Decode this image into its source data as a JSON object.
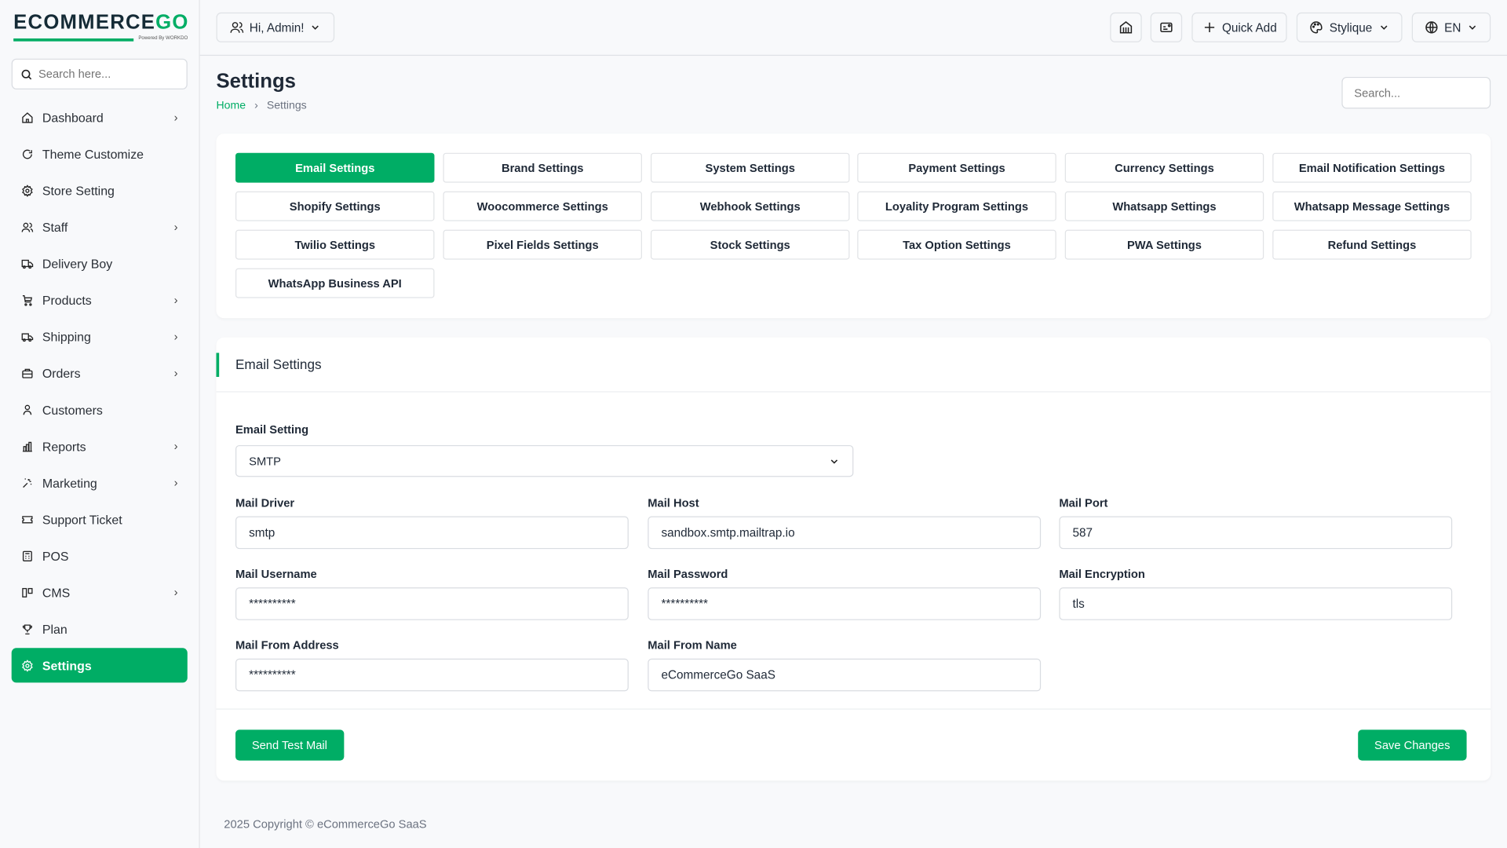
{
  "brand": {
    "logo_main": "ECOMMERCE",
    "logo_accent": "GO",
    "powered": "Powered By WORKDO",
    "accent": "#00ad65"
  },
  "sidebar": {
    "search_placeholder": "Search here...",
    "items": [
      {
        "label": "Dashboard",
        "icon": "home-icon",
        "chevron": true
      },
      {
        "label": "Theme Customize",
        "icon": "refresh-icon",
        "chevron": false
      },
      {
        "label": "Store Setting",
        "icon": "gear-icon",
        "chevron": false
      },
      {
        "label": "Staff",
        "icon": "users-icon",
        "chevron": true
      },
      {
        "label": "Delivery Boy",
        "icon": "truck-icon",
        "chevron": false
      },
      {
        "label": "Products",
        "icon": "cart-icon",
        "chevron": true
      },
      {
        "label": "Shipping",
        "icon": "shipping-icon",
        "chevron": true
      },
      {
        "label": "Orders",
        "icon": "briefcase-icon",
        "chevron": true
      },
      {
        "label": "Customers",
        "icon": "user-icon",
        "chevron": false
      },
      {
        "label": "Reports",
        "icon": "chart-icon",
        "chevron": true
      },
      {
        "label": "Marketing",
        "icon": "sparkle-icon",
        "chevron": true
      },
      {
        "label": "Support Ticket",
        "icon": "ticket-icon",
        "chevron": false
      },
      {
        "label": "POS",
        "icon": "pos-icon",
        "chevron": false
      },
      {
        "label": "CMS",
        "icon": "layout-icon",
        "chevron": true
      },
      {
        "label": "Plan",
        "icon": "trophy-icon",
        "chevron": false
      },
      {
        "label": "Settings",
        "icon": "gear-icon",
        "chevron": false,
        "active": true
      }
    ]
  },
  "header": {
    "greeting": "Hi, Admin!",
    "quick_add": "Quick Add",
    "theme": "Stylique",
    "language": "EN"
  },
  "page": {
    "title": "Settings",
    "breadcrumb": [
      "Home",
      "Settings"
    ],
    "search_placeholder": "Search..."
  },
  "tabs": [
    "Email Settings",
    "Brand Settings",
    "System Settings",
    "Payment Settings",
    "Currency Settings",
    "Email Notification Settings",
    "Shopify Settings",
    "Woocommerce Settings",
    "Webhook Settings",
    "Loyality Program Settings",
    "Whatsapp Settings",
    "Whatsapp Message Settings",
    "Twilio Settings",
    "Pixel Fields Settings",
    "Stock Settings",
    "Tax Option Settings",
    "PWA Settings",
    "Refund Settings",
    "WhatsApp Business API"
  ],
  "active_tab": "Email Settings",
  "form": {
    "title": "Email Settings",
    "email_setting_label": "Email Setting",
    "email_setting_value": "SMTP",
    "fields": [
      {
        "label": "Mail Driver",
        "value": "smtp"
      },
      {
        "label": "Mail Host",
        "value": "sandbox.smtp.mailtrap.io"
      },
      {
        "label": "Mail Port",
        "value": "587"
      },
      {
        "label": "Mail Username",
        "value": "**********"
      },
      {
        "label": "Mail Password",
        "value": "**********"
      },
      {
        "label": "Mail Encryption",
        "value": "tls"
      },
      {
        "label": "Mail From Address",
        "value": "**********"
      },
      {
        "label": "Mail From Name",
        "value": "eCommerceGo SaaS"
      }
    ],
    "send_test": "Send Test Mail",
    "save": "Save Changes"
  },
  "footer": "2025 Copyright © eCommerceGo SaaS"
}
